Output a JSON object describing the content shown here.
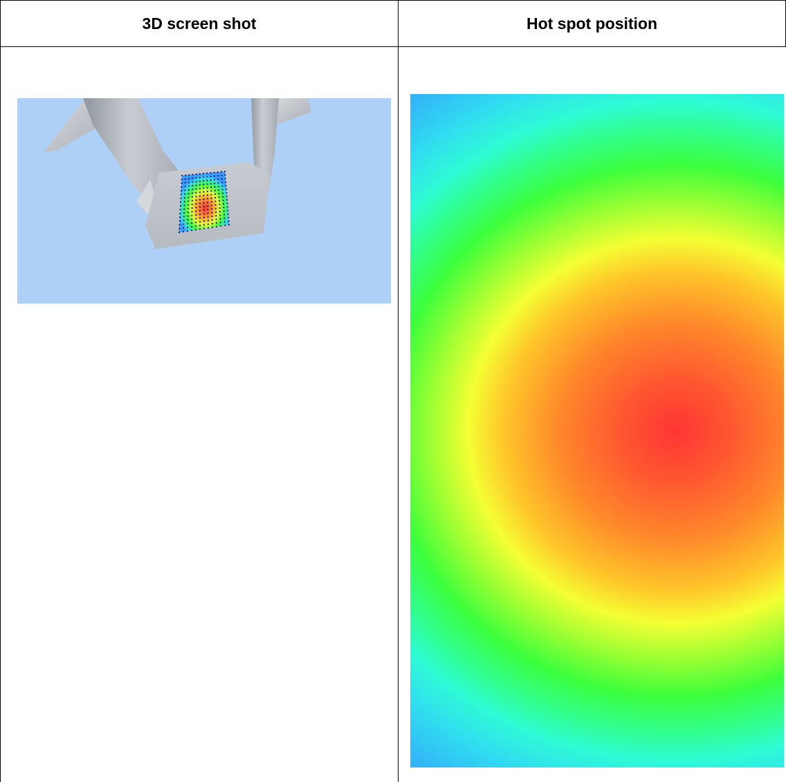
{
  "table": {
    "headers": {
      "left": "3D screen shot",
      "right": "Hot spot position"
    }
  },
  "colors": {
    "viewport_background": "#aecff6",
    "hotspot_peak": "#ff3434",
    "hotspot_edge": "#3296ff"
  },
  "images": {
    "left": "3d-model-view-with-sensor-grid",
    "right": "hot-spot-heatmap"
  }
}
